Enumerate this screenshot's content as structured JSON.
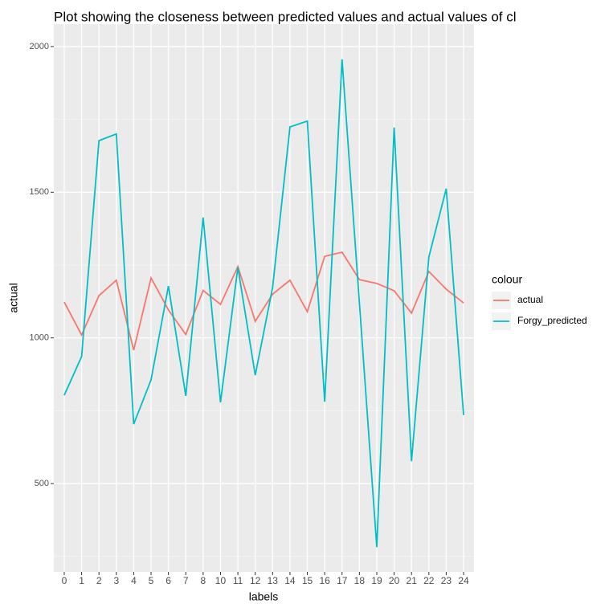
{
  "chart_data": {
    "type": "line",
    "title": "Plot showing the closeness between predicted values and actual values of cl",
    "x_label": "labels",
    "y_label": "actual",
    "legend_title": "colour",
    "legend": "right",
    "categories": [
      "0",
      "1",
      "2",
      "3",
      "4",
      "5",
      "6",
      "7",
      "8",
      "10",
      "11",
      "12",
      "13",
      "14",
      "15",
      "16",
      "17",
      "18",
      "19",
      "20",
      "21",
      "22",
      "23",
      "24"
    ],
    "series": [
      {
        "name": "actual",
        "color": "#f8766d",
        "values": [
          1123,
          1010,
          1145,
          1198,
          958,
          1206,
          1096,
          1012,
          1163,
          1115,
          1245,
          1057,
          1150,
          1198,
          1090,
          1280,
          1294,
          1200,
          1187,
          1162,
          1085,
          1228,
          1167,
          1120
        ]
      },
      {
        "name": "Forgy_predicted",
        "color": "#00bfc4",
        "values": [
          803,
          936,
          1677,
          1700,
          704,
          856,
          1178,
          801,
          1413,
          779,
          1242,
          872,
          1173,
          1724,
          1744,
          781,
          1956,
          1120,
          282,
          1722,
          577,
          1278,
          1512,
          735
        ]
      }
    ],
    "ylim": [
      197,
      2077
    ],
    "yticks": [
      500,
      1000,
      1500,
      2000
    ],
    "grid": true
  }
}
